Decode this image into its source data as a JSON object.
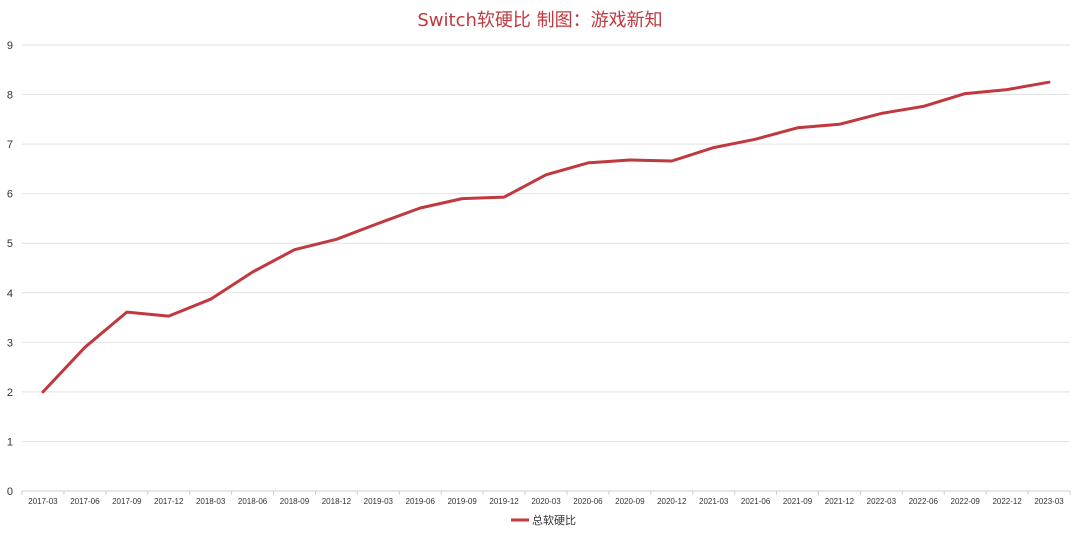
{
  "chart_data": {
    "type": "line",
    "title": "Switch软硬比 制图：游戏新知",
    "xlabel": "",
    "ylabel": "",
    "ylim": [
      0,
      9
    ],
    "y_ticks": [
      "0",
      "1",
      "2",
      "3",
      "4",
      "5",
      "6",
      "7",
      "8",
      "9"
    ],
    "grid": true,
    "legend_position": "bottom-center",
    "x": [
      "2017-03",
      "2017-06",
      "2017-09",
      "2017-12",
      "2018-03",
      "2018-06",
      "2018-09",
      "2018-12",
      "2019-03",
      "2019-06",
      "2019-09",
      "2019-12",
      "2020-03",
      "2020-06",
      "2020-09",
      "2020-12",
      "2021-03",
      "2021-06",
      "2021-09",
      "2021-12",
      "2022-03",
      "2022-06",
      "2022-09",
      "2022-12",
      "2023-03"
    ],
    "series": [
      {
        "name": "总软硬比",
        "color": "#c0393f",
        "values": [
          2.0,
          2.9,
          3.61,
          3.53,
          3.87,
          4.42,
          4.87,
          5.08,
          5.4,
          5.71,
          5.9,
          5.93,
          6.38,
          6.62,
          6.68,
          6.66,
          6.93,
          7.1,
          7.33,
          7.4,
          7.62,
          7.76,
          8.02,
          8.1,
          8.25
        ]
      }
    ]
  }
}
